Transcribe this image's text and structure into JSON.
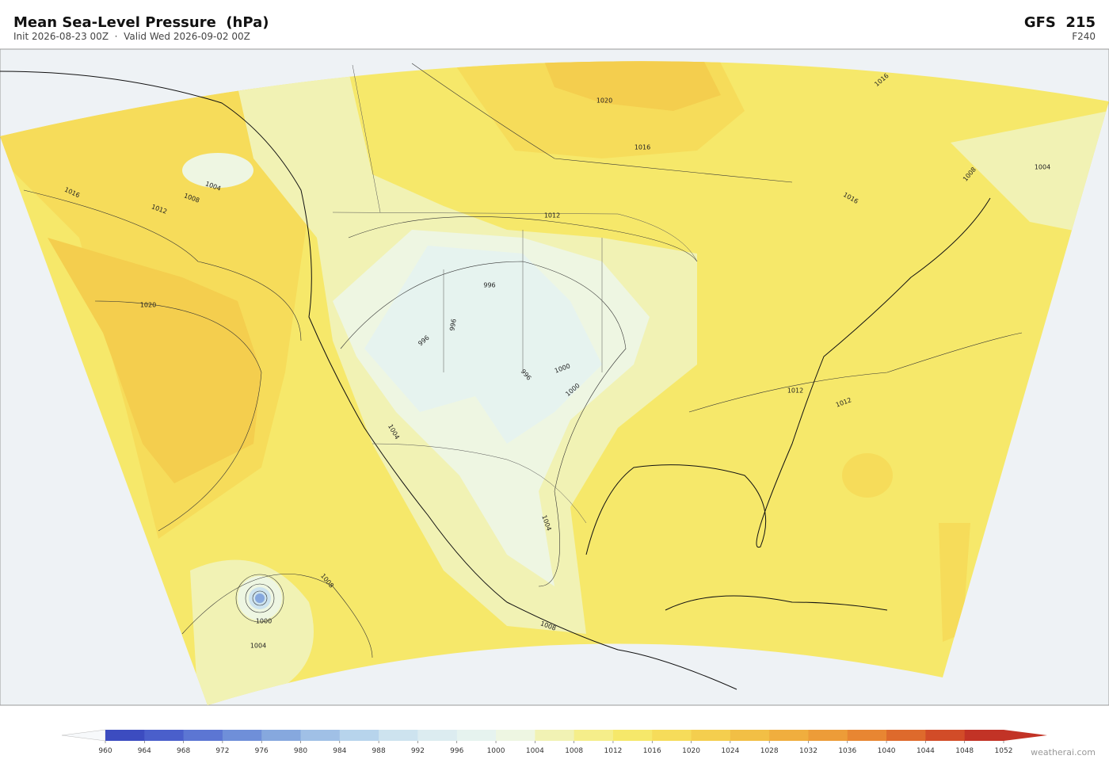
{
  "header": {
    "title": "Mean Sea-Level Pressure  (hPa)",
    "subtitle": "Init 2026-08-23 00Z  ·  Valid Wed 2026-09-02 00Z",
    "model": "GFS  215",
    "forecast_hour": "F240"
  },
  "map": {
    "contour_labels": [
      1020,
      1016,
      1012,
      1016,
      1016,
      1008,
      1004,
      1004,
      1008,
      1012,
      1016,
      1020,
      996,
      996,
      996,
      1000,
      1000,
      996,
      1012,
      1012,
      1004,
      1004,
      1008,
      1008,
      1000,
      1004
    ]
  },
  "colorbar": {
    "ticks": [
      960,
      964,
      968,
      972,
      976,
      980,
      984,
      988,
      992,
      996,
      1000,
      1004,
      1008,
      1012,
      1016,
      1020,
      1024,
      1028,
      1032,
      1036,
      1040,
      1044,
      1048,
      1052
    ],
    "colors": [
      "#3c4cc0",
      "#4a5fcb",
      "#5c76d3",
      "#6f8fd9",
      "#86a8de",
      "#a0c0e6",
      "#b7d4ec",
      "#cde3ef",
      "#dcecf0",
      "#e6f3ef",
      "#eef6e2",
      "#f1f2b4",
      "#f5ee8a",
      "#f6e86a",
      "#f6dc5a",
      "#f4ce4e",
      "#f2bf45",
      "#f0ae3e",
      "#ed9c38",
      "#e88632",
      "#de6a2c",
      "#d24c28",
      "#c23326"
    ]
  },
  "footer": {
    "watermark": "weatherai.com"
  }
}
